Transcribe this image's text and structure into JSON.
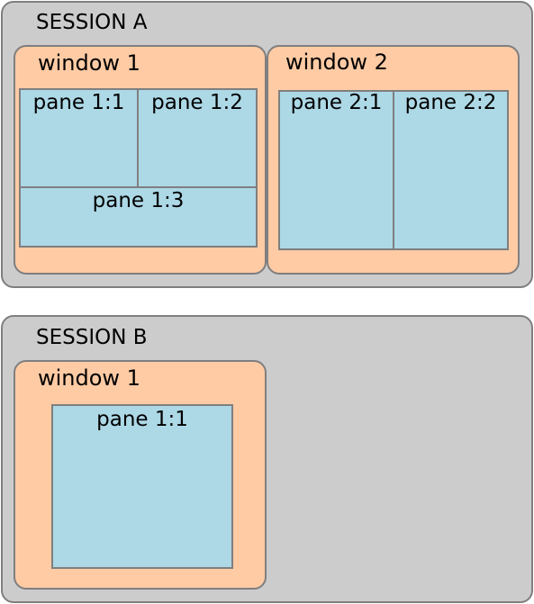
{
  "colors": {
    "session_fill": "#cccccc",
    "window_fill": "#ffcba4",
    "pane_fill": "#add8e6",
    "outline": "#7f7f7f"
  },
  "session_a": {
    "label": "SESSION A",
    "window_1": {
      "label": "window 1",
      "panes": [
        "pane 1:1",
        "pane 1:2",
        "pane 1:3"
      ]
    },
    "window_2": {
      "label": "window 2",
      "panes": [
        "pane 2:1",
        "pane 2:2"
      ]
    }
  },
  "session_b": {
    "label": "SESSION B",
    "window_1": {
      "label": "window 1",
      "panes": [
        "pane 1:1"
      ]
    }
  }
}
